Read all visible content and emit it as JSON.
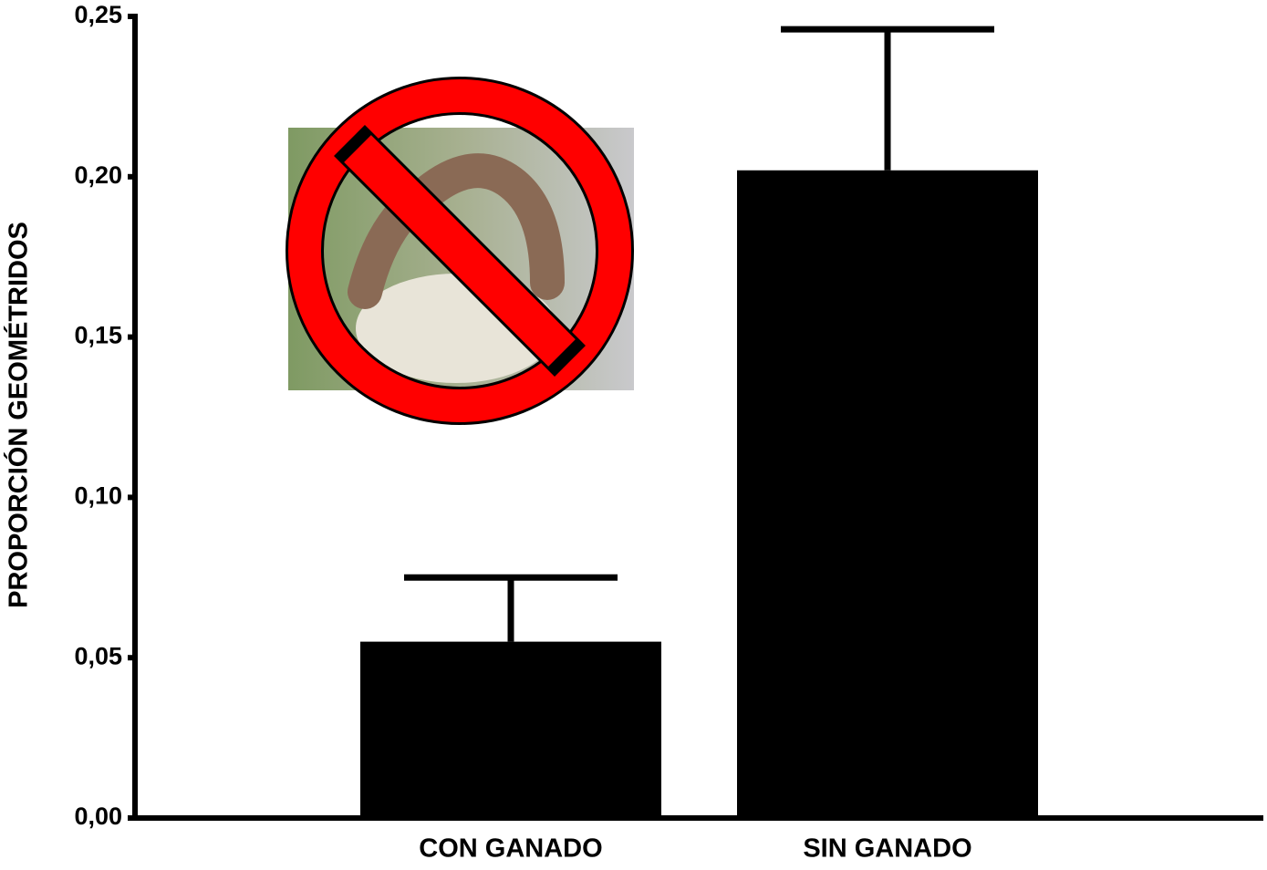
{
  "chart_data": {
    "type": "bar",
    "y_axis_label": "PROPORCIÓN GEOMÉTRIDOS",
    "categories": [
      "CON GANADO",
      "SIN GANADO"
    ],
    "values": [
      0.055,
      0.202
    ],
    "errors": [
      0.02,
      0.044
    ],
    "color": "#000000",
    "ylim": [
      0,
      0.25
    ],
    "yticks": [
      {
        "value": 0,
        "label": "0,00"
      },
      {
        "value": 0.05,
        "label": "0,05"
      },
      {
        "value": 0.1,
        "label": "0,10"
      },
      {
        "value": 0.15,
        "label": "0,15"
      },
      {
        "value": 0.2,
        "label": "0,20"
      },
      {
        "value": 0.25,
        "label": "0,25"
      }
    ],
    "grid": false
  }
}
